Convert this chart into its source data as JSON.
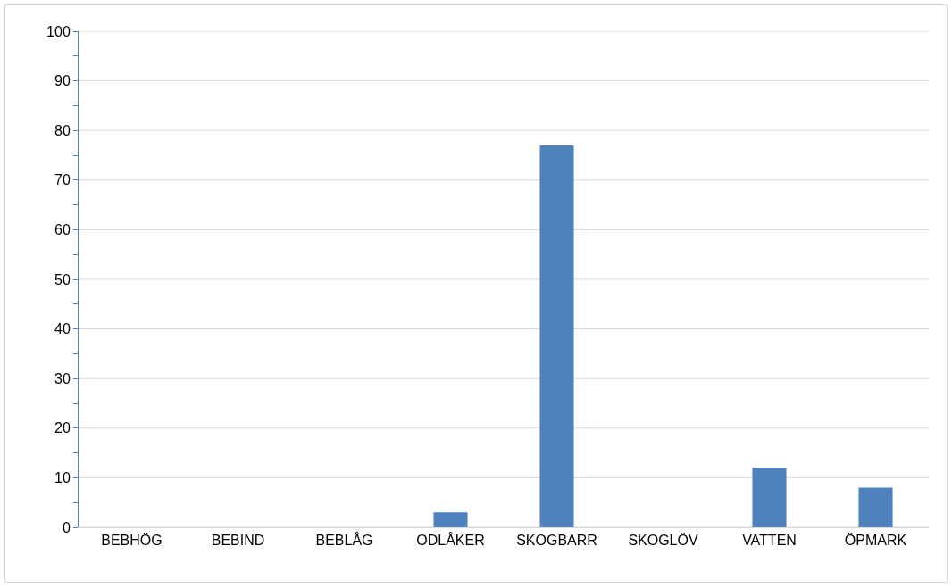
{
  "chart_data": {
    "type": "bar",
    "categories": [
      "BEBHÖG",
      "BEBIND",
      "BEBLÅG",
      "ODLÅKER",
      "SKOGBARR",
      "SKOGLÖV",
      "VATTEN",
      "ÖPMARK"
    ],
    "values": [
      0,
      0,
      0,
      3,
      77,
      0,
      12,
      8
    ],
    "color": "#4f81bd",
    "ylim": [
      0,
      100
    ],
    "yticks": [
      0,
      {
        "value": 5,
        "label": null
      },
      10,
      {
        "value": 15,
        "label": null
      },
      20,
      {
        "value": 25,
        "label": null
      },
      30,
      {
        "value": 35,
        "label": null
      },
      40,
      {
        "value": 45,
        "label": null
      },
      50,
      {
        "value": 55,
        "label": null
      },
      60,
      {
        "value": 65,
        "label": null
      },
      70,
      {
        "value": 75,
        "label": null
      },
      80,
      {
        "value": 85,
        "label": null
      },
      90,
      {
        "value": 95,
        "label": null
      },
      100
    ],
    "grid": "y"
  }
}
